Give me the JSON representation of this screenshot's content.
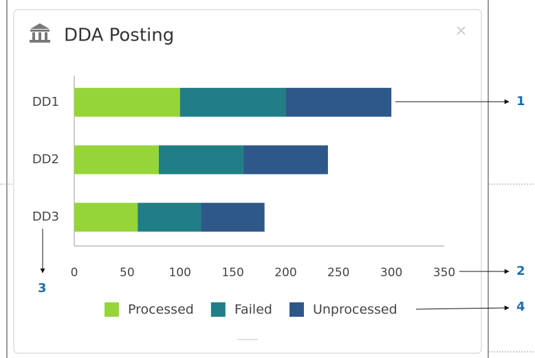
{
  "chart_data": {
    "type": "bar",
    "orientation": "horizontal",
    "stacked": true,
    "title": "DDA Posting",
    "categories": [
      "DD1",
      "DD2",
      "DD3"
    ],
    "series": [
      {
        "name": "Processed",
        "color": "#95d53a",
        "values": [
          100,
          80,
          60
        ]
      },
      {
        "name": "Failed",
        "color": "#217e86",
        "values": [
          100,
          80,
          60
        ]
      },
      {
        "name": "Unprocessed",
        "color": "#2e588a",
        "values": [
          100,
          80,
          60
        ]
      }
    ],
    "xlim": [
      0,
      350
    ],
    "xticks": [
      0,
      50,
      100,
      150,
      200,
      250,
      300,
      350
    ],
    "legend": "bottom",
    "grid": false
  },
  "callouts": [
    "1",
    "2",
    "3",
    "4"
  ]
}
